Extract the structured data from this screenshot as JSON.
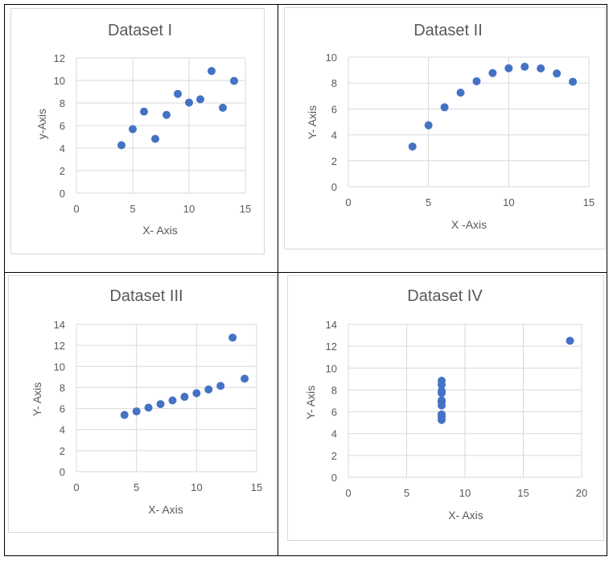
{
  "chart_data": [
    {
      "type": "scatter",
      "title": "Dataset I",
      "xlabel": "X- Axis",
      "ylabel": "y-Axis",
      "xlim": [
        0,
        15
      ],
      "ylim": [
        0,
        12
      ],
      "xticks": [
        "0",
        "5",
        "10",
        "15"
      ],
      "yticks": [
        "0",
        "2",
        "4",
        "6",
        "8",
        "10",
        "12"
      ],
      "grid": true,
      "color": "#4472c4",
      "points": [
        [
          4,
          4.26
        ],
        [
          5,
          5.68
        ],
        [
          6,
          7.24
        ],
        [
          7,
          4.82
        ],
        [
          8,
          6.95
        ],
        [
          9,
          8.81
        ],
        [
          10,
          8.04
        ],
        [
          11,
          8.33
        ],
        [
          12,
          10.84
        ],
        [
          13,
          7.58
        ],
        [
          14,
          9.96
        ]
      ]
    },
    {
      "type": "scatter",
      "title": "Dataset II",
      "xlabel": "X -Axis",
      "ylabel": "Y- Axis",
      "xlim": [
        0,
        15
      ],
      "ylim": [
        0,
        10
      ],
      "xticks": [
        "0",
        "5",
        "10",
        "15"
      ],
      "yticks": [
        "0",
        "2",
        "4",
        "6",
        "8",
        "10"
      ],
      "grid": true,
      "color": "#4472c4",
      "points": [
        [
          4,
          3.1
        ],
        [
          5,
          4.74
        ],
        [
          6,
          6.13
        ],
        [
          7,
          7.26
        ],
        [
          8,
          8.14
        ],
        [
          9,
          8.77
        ],
        [
          10,
          9.14
        ],
        [
          11,
          9.26
        ],
        [
          12,
          9.13
        ],
        [
          13,
          8.74
        ],
        [
          14,
          8.1
        ]
      ]
    },
    {
      "type": "scatter",
      "title": "Dataset III",
      "xlabel": "X- Axis",
      "ylabel": "Y- Axis",
      "xlim": [
        0,
        15
      ],
      "ylim": [
        0,
        14
      ],
      "xticks": [
        "0",
        "5",
        "10",
        "15"
      ],
      "yticks": [
        "0",
        "2",
        "4",
        "6",
        "8",
        "10",
        "12",
        "14"
      ],
      "grid": true,
      "color": "#4472c4",
      "points": [
        [
          4,
          5.39
        ],
        [
          5,
          5.73
        ],
        [
          6,
          6.08
        ],
        [
          7,
          6.42
        ],
        [
          8,
          6.77
        ],
        [
          9,
          7.11
        ],
        [
          10,
          7.46
        ],
        [
          11,
          7.81
        ],
        [
          12,
          8.15
        ],
        [
          13,
          12.74
        ],
        [
          14,
          8.84
        ]
      ]
    },
    {
      "type": "scatter",
      "title": "Dataset IV",
      "xlabel": "X- Axis",
      "ylabel": "Y- Axis",
      "xlim": [
        0,
        20
      ],
      "ylim": [
        0,
        14
      ],
      "xticks": [
        "0",
        "5",
        "10",
        "15",
        "20"
      ],
      "yticks": [
        "0",
        "2",
        "4",
        "6",
        "8",
        "10",
        "12",
        "14"
      ],
      "grid": true,
      "color": "#4472c4",
      "points": [
        [
          8,
          6.58
        ],
        [
          8,
          5.76
        ],
        [
          8,
          7.71
        ],
        [
          8,
          8.84
        ],
        [
          8,
          8.47
        ],
        [
          8,
          7.04
        ],
        [
          8,
          5.25
        ],
        [
          19,
          12.5
        ],
        [
          8,
          5.56
        ],
        [
          8,
          7.91
        ],
        [
          8,
          6.89
        ]
      ]
    }
  ]
}
